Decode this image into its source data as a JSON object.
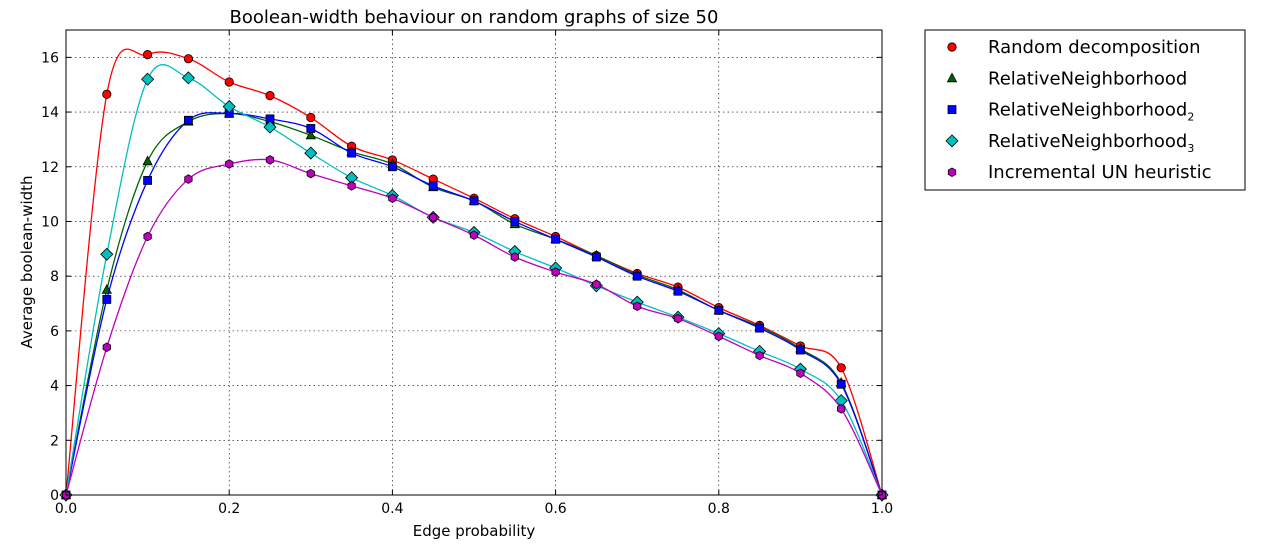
{
  "chart_data": {
    "type": "line",
    "title": "Boolean-width behaviour on random graphs of size 50",
    "xlabel": "Edge probability",
    "ylabel": "Average boolean-width",
    "xlim": [
      0.0,
      1.0
    ],
    "ylim": [
      0,
      17
    ],
    "xticks": [
      "0.0",
      "0.2",
      "0.4",
      "0.6",
      "0.8",
      "1.0"
    ],
    "yticks": [
      "0",
      "2",
      "4",
      "6",
      "8",
      "10",
      "12",
      "14",
      "16"
    ],
    "grid": true,
    "legend_position": "outside-right",
    "x": [
      0.0,
      0.05,
      0.1,
      0.15,
      0.2,
      0.25,
      0.3,
      0.35,
      0.4,
      0.45,
      0.5,
      0.55,
      0.6,
      0.65,
      0.7,
      0.75,
      0.8,
      0.85,
      0.9,
      0.95,
      1.0
    ],
    "series": [
      {
        "name": "Random decomposition",
        "label_main": "Random decomposition",
        "label_sub": "",
        "marker": "circle",
        "color": "#ff0000",
        "values": [
          0,
          14.65,
          16.1,
          15.95,
          15.1,
          14.6,
          13.8,
          12.75,
          12.25,
          11.55,
          10.85,
          10.1,
          9.45,
          8.75,
          8.1,
          7.6,
          6.85,
          6.2,
          5.45,
          4.65,
          0
        ]
      },
      {
        "name": "RelativeNeighborhood",
        "label_main": "RelativeNeighborhood",
        "label_sub": "",
        "marker": "triangle",
        "color": "#006400",
        "values": [
          0,
          7.5,
          12.2,
          13.65,
          13.95,
          13.65,
          13.15,
          12.55,
          12.1,
          11.25,
          10.75,
          9.9,
          9.35,
          8.75,
          8.05,
          7.5,
          6.75,
          6.15,
          5.35,
          4.1,
          0
        ]
      },
      {
        "name": "RelativeNeighborhood2",
        "label_main": "RelativeNeighborhood",
        "label_sub": "2",
        "marker": "square",
        "color": "#0000ff",
        "values": [
          0,
          7.15,
          11.5,
          13.7,
          13.95,
          13.75,
          13.4,
          12.5,
          12.0,
          11.3,
          10.75,
          10.0,
          9.35,
          8.7,
          8.0,
          7.45,
          6.75,
          6.1,
          5.3,
          4.05,
          0
        ]
      },
      {
        "name": "RelativeNeighborhood3",
        "label_main": "RelativeNeighborhood",
        "label_sub": "3",
        "marker": "diamond",
        "color": "#00bfbf",
        "values": [
          0,
          8.8,
          15.2,
          15.25,
          14.2,
          13.45,
          12.5,
          11.6,
          10.95,
          10.15,
          9.6,
          8.9,
          8.3,
          7.65,
          7.05,
          6.5,
          5.9,
          5.25,
          4.6,
          3.45,
          0
        ]
      },
      {
        "name": "Incremental UN heuristic",
        "label_main": "Incremental UN heuristic",
        "label_sub": "",
        "marker": "hexagon",
        "color": "#bf00bf",
        "values": [
          0,
          5.4,
          9.45,
          11.55,
          12.1,
          12.25,
          11.75,
          11.3,
          10.85,
          10.15,
          9.5,
          8.7,
          8.15,
          7.7,
          6.9,
          6.45,
          5.8,
          5.1,
          4.45,
          3.15,
          0
        ]
      }
    ]
  }
}
